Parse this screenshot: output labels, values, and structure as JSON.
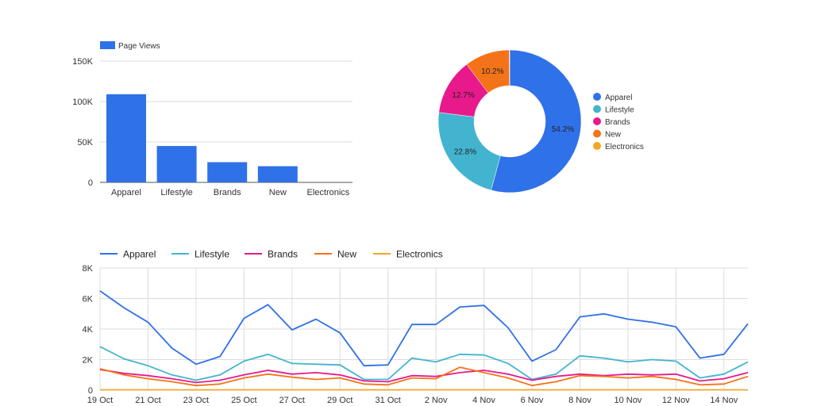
{
  "chart_data": [
    {
      "type": "bar",
      "legend": [
        "Page Views"
      ],
      "categories": [
        "Apparel",
        "Lifestyle",
        "Brands",
        "New",
        "Electronics"
      ],
      "series": [
        {
          "name": "Page Views",
          "values": [
            109000,
            45000,
            25000,
            20000,
            0
          ]
        }
      ],
      "yticks": [
        "0",
        "50K",
        "100K",
        "150K"
      ],
      "ylim": [
        0,
        150000
      ],
      "grid": true,
      "color": "#2f71e8"
    },
    {
      "type": "pie",
      "donut": true,
      "labels": [
        "Apparel",
        "Lifestyle",
        "Brands",
        "New",
        "Electronics"
      ],
      "values": [
        54.2,
        22.8,
        12.7,
        10.2,
        0.1
      ],
      "value_labels": [
        "54.2%",
        "22.8%",
        "12.7%",
        "10.2%",
        ""
      ],
      "colors": [
        "#2f71e8",
        "#43b4cf",
        "#e8198b",
        "#f47318",
        "#f5a623"
      ],
      "legend_position": "right"
    },
    {
      "type": "line",
      "x": [
        "19 Oct",
        "20 Oct",
        "21 Oct",
        "22 Oct",
        "23 Oct",
        "24 Oct",
        "25 Oct",
        "26 Oct",
        "27 Oct",
        "28 Oct",
        "29 Oct",
        "30 Oct",
        "31 Oct",
        "1 Nov",
        "2 Nov",
        "3 Nov",
        "4 Nov",
        "5 Nov",
        "6 Nov",
        "7 Nov",
        "8 Nov",
        "9 Nov",
        "10 Nov",
        "11 Nov",
        "12 Nov",
        "13 Nov",
        "14 Nov",
        "15 Nov"
      ],
      "xtick_labels": [
        "19 Oct",
        "21 Oct",
        "23 Oct",
        "25 Oct",
        "27 Oct",
        "29 Oct",
        "31 Oct",
        "2 Nov",
        "4 Nov",
        "6 Nov",
        "8 Nov",
        "10 Nov",
        "12 Nov",
        "14 Nov"
      ],
      "yticks": [
        "0",
        "2K",
        "4K",
        "6K",
        "8K"
      ],
      "ylim": [
        0,
        8000
      ],
      "grid": true,
      "legend_position": "top",
      "series": [
        {
          "name": "Apparel",
          "color": "#2f71e8",
          "values": [
            6500,
            5400,
            4450,
            2750,
            1700,
            2200,
            4700,
            5600,
            3950,
            4650,
            3750,
            1600,
            1650,
            4300,
            4300,
            5450,
            5550,
            4100,
            1900,
            2650,
            4800,
            5000,
            4650,
            4450,
            4150,
            2100,
            2350,
            4350
          ]
        },
        {
          "name": "Lifestyle",
          "color": "#43b4cf",
          "values": [
            2850,
            2050,
            1600,
            1000,
            650,
            1000,
            1900,
            2350,
            1750,
            1700,
            1650,
            700,
            700,
            2100,
            1850,
            2350,
            2300,
            1750,
            700,
            1050,
            2250,
            2100,
            1850,
            2000,
            1900,
            800,
            1050,
            1850
          ]
        },
        {
          "name": "Brands",
          "color": "#e8198b",
          "values": [
            1350,
            1100,
            950,
            750,
            500,
            650,
            1000,
            1300,
            1050,
            1150,
            1000,
            600,
            550,
            950,
            900,
            1150,
            1300,
            1050,
            650,
            900,
            1050,
            950,
            1050,
            1000,
            1050,
            600,
            750,
            1150
          ]
        },
        {
          "name": "New",
          "color": "#f47318",
          "values": [
            1400,
            1000,
            750,
            550,
            300,
            400,
            800,
            1050,
            850,
            700,
            800,
            400,
            350,
            800,
            750,
            1500,
            1150,
            800,
            300,
            550,
            950,
            900,
            800,
            900,
            700,
            350,
            400,
            900
          ]
        },
        {
          "name": "Electronics",
          "color": "#f5a623",
          "values": [
            20,
            20,
            20,
            20,
            20,
            20,
            20,
            20,
            20,
            20,
            20,
            20,
            20,
            20,
            20,
            20,
            20,
            20,
            20,
            20,
            20,
            20,
            20,
            20,
            20,
            20,
            20,
            20
          ]
        }
      ]
    }
  ]
}
